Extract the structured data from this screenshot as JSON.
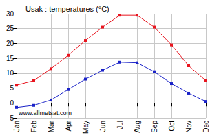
{
  "chart_data": {
    "type": "line",
    "title": "Usak : temperatures (°C)",
    "annotation": "www.allmetsat.com",
    "categories": [
      "Jan",
      "Feb",
      "Mar",
      "Apr",
      "May",
      "Jun",
      "Jul",
      "Aug",
      "Sep",
      "Oct",
      "Nov",
      "Dec"
    ],
    "series": [
      {
        "color": "#e8141e",
        "marker": "square",
        "line_style": "solid",
        "values": [
          6,
          7.5,
          11.5,
          16,
          21,
          25.5,
          29.5,
          29.5,
          25.5,
          19.5,
          12.5,
          7.5
        ]
      },
      {
        "color": "#1a22c8",
        "marker": "square",
        "line_style": "solid",
        "values": [
          -1.5,
          -0.8,
          1,
          4.5,
          8,
          11,
          13.7,
          13.5,
          10.5,
          6.5,
          3.3,
          0.5
        ]
      }
    ],
    "ylim": [
      -5,
      30
    ],
    "yticks": [
      -5,
      0,
      5,
      10,
      15,
      20,
      25,
      30
    ],
    "grid": true
  }
}
